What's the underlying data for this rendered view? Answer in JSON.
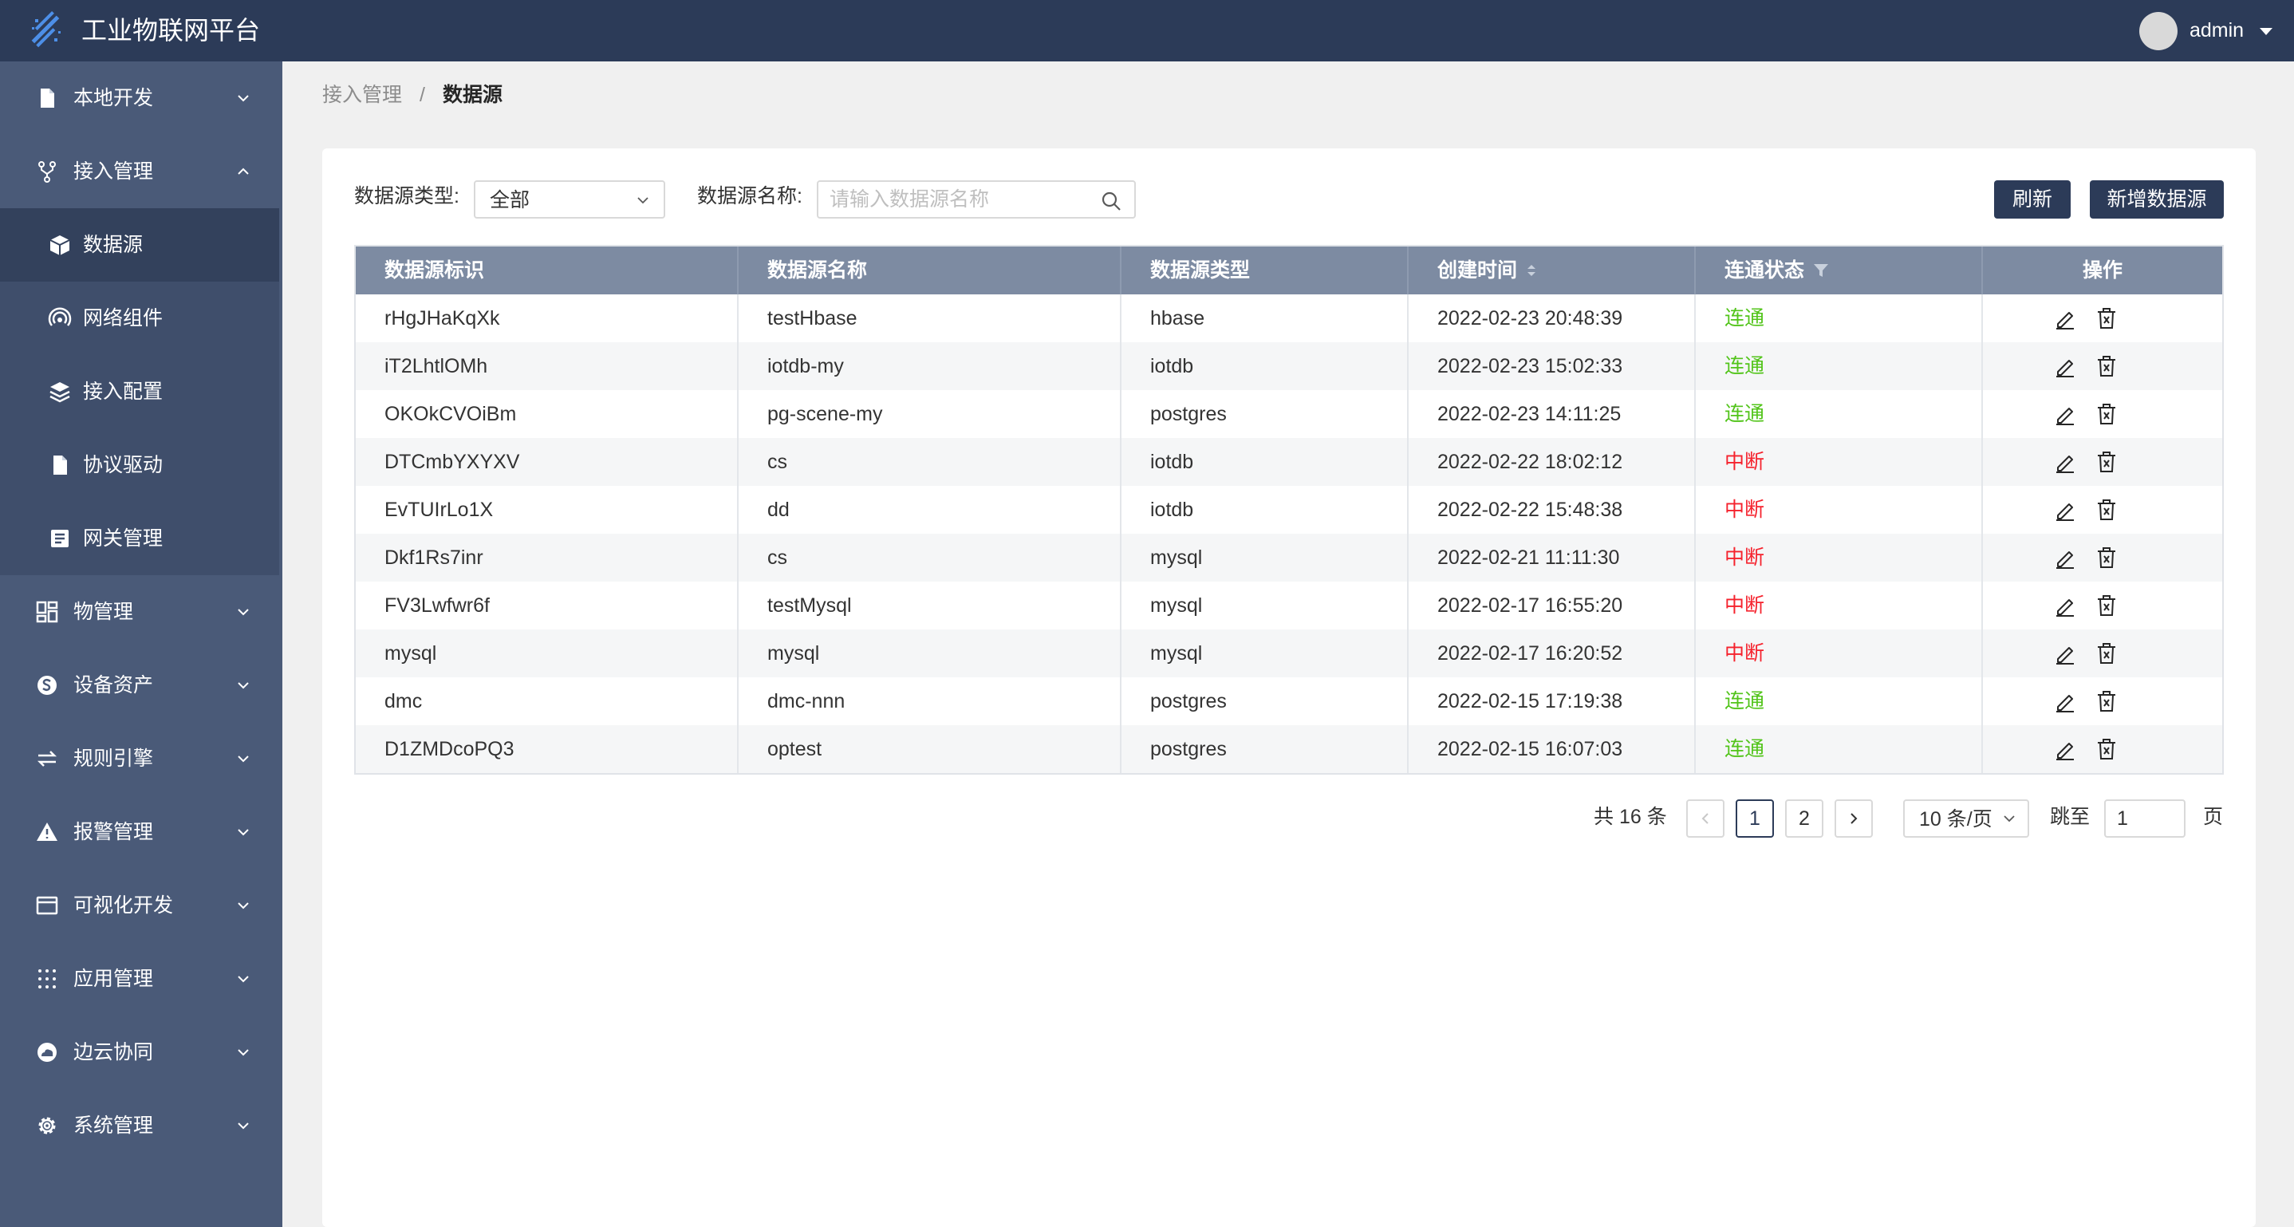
{
  "app": {
    "title": "工业物联网平台",
    "user": "admin"
  },
  "sidebar": {
    "items": [
      {
        "label": "本地开发",
        "icon": "file-icon"
      },
      {
        "label": "接入管理",
        "icon": "fork-icon",
        "expanded": true
      },
      {
        "label": "物管理",
        "icon": "grid-icon"
      },
      {
        "label": "设备资产",
        "icon": "dollar-circle-icon"
      },
      {
        "label": "规则引擎",
        "icon": "swap-icon"
      },
      {
        "label": "报警管理",
        "icon": "warning-icon"
      },
      {
        "label": "可视化开发",
        "icon": "browser-icon"
      },
      {
        "label": "应用管理",
        "icon": "dots-grid-icon"
      },
      {
        "label": "边云协同",
        "icon": "cloud-icon"
      },
      {
        "label": "系统管理",
        "icon": "gear-icon"
      }
    ],
    "submenu": [
      {
        "label": "数据源",
        "icon": "cube-icon",
        "active": true
      },
      {
        "label": "网络组件",
        "icon": "signal-icon"
      },
      {
        "label": "接入配置",
        "icon": "layers-icon"
      },
      {
        "label": "协议驱动",
        "icon": "file-icon"
      },
      {
        "label": "网关管理",
        "icon": "profile-icon"
      }
    ]
  },
  "breadcrumb": {
    "parent": "接入管理",
    "separator": "/",
    "current": "数据源"
  },
  "filters": {
    "type_label": "数据源类型:",
    "type_value": "全部",
    "name_label": "数据源名称:",
    "name_placeholder": "请输入数据源名称"
  },
  "buttons": {
    "refresh": "刷新",
    "add": "新增数据源"
  },
  "table": {
    "headers": [
      "数据源标识",
      "数据源名称",
      "数据源类型",
      "创建时间",
      "连通状态",
      "操作"
    ],
    "rows": [
      {
        "id": "rHgJHaKqXk",
        "name": "testHbase",
        "type": "hbase",
        "created": "2022-02-23 20:48:39",
        "status": "连通"
      },
      {
        "id": "iT2LhtlOMh",
        "name": "iotdb-my",
        "type": "iotdb",
        "created": "2022-02-23 15:02:33",
        "status": "连通"
      },
      {
        "id": "OKOkCVOiBm",
        "name": "pg-scene-my",
        "type": "postgres",
        "created": "2022-02-23 14:11:25",
        "status": "连通"
      },
      {
        "id": "DTCmbYXYXV",
        "name": "cs",
        "type": "iotdb",
        "created": "2022-02-22 18:02:12",
        "status": "中断"
      },
      {
        "id": "EvTUIrLo1X",
        "name": "dd",
        "type": "iotdb",
        "created": "2022-02-22 15:48:38",
        "status": "中断"
      },
      {
        "id": "Dkf1Rs7inr",
        "name": "cs",
        "type": "mysql",
        "created": "2022-02-21 11:11:30",
        "status": "中断"
      },
      {
        "id": "FV3Lwfwr6f",
        "name": "testMysql",
        "type": "mysql",
        "created": "2022-02-17 16:55:20",
        "status": "中断"
      },
      {
        "id": "mysql",
        "name": "mysql",
        "type": "mysql",
        "created": "2022-02-17 16:20:52",
        "status": "中断"
      },
      {
        "id": "dmc",
        "name": "dmc-nnn",
        "type": "postgres",
        "created": "2022-02-15 17:19:38",
        "status": "连通"
      },
      {
        "id": "D1ZMDcoPQ3",
        "name": "optest",
        "type": "postgres",
        "created": "2022-02-15 16:07:03",
        "status": "连通"
      }
    ]
  },
  "pagination": {
    "total": "共 16 条",
    "pages": [
      "1",
      "2"
    ],
    "current": "1",
    "page_size": "10 条/页",
    "jump_label": "跳至",
    "jump_value": "1",
    "page_suffix": "页"
  },
  "colors": {
    "header_bg": "#2c3b58",
    "sidebar_bg": "#4a5a78",
    "table_header_bg": "#7d8ba2",
    "status_ok": "#52c41a",
    "status_bad": "#f5222d"
  }
}
